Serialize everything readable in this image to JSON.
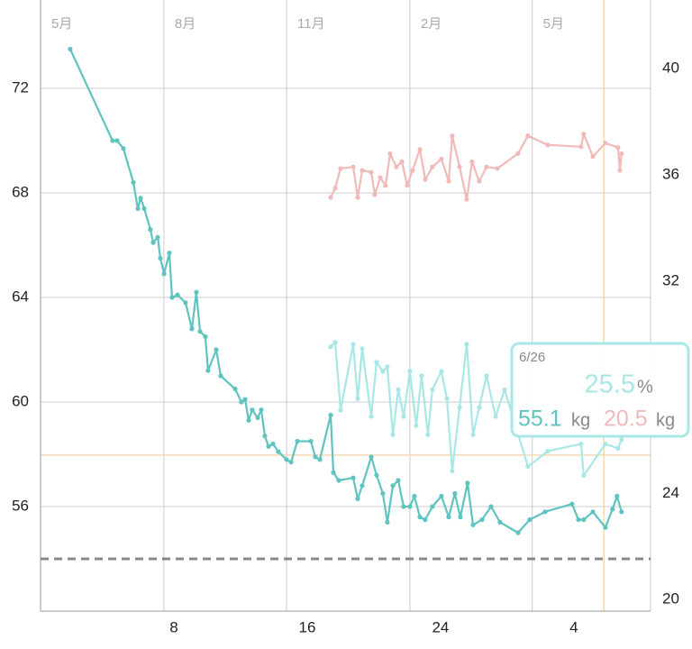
{
  "chart_data": {
    "type": "line",
    "xlim": [
      0,
      36.6
    ],
    "xticks": [
      8,
      16,
      24,
      {
        "value": 32,
        "label": "4"
      }
    ],
    "x2ticks": [
      {
        "value": 0,
        "label": "5月"
      },
      {
        "value": 7.4,
        "label": "8月"
      },
      {
        "value": 14.76,
        "label": "11月"
      },
      {
        "value": 22.16,
        "label": "2月"
      },
      {
        "value": 29.5,
        "label": "5月"
      }
    ],
    "ylim": [
      52,
      75.38
    ],
    "yticks": [
      56,
      60,
      64,
      68,
      72
    ],
    "y2lim": [
      19.56,
      42.59
    ],
    "y2ticks": [
      20,
      24,
      32,
      36,
      40
    ],
    "grid": true,
    "reference_lines": [
      {
        "axis": "y",
        "value": 54,
        "color": "#888888",
        "style": "dashed"
      },
      {
        "axis": "y",
        "value": 57.97,
        "color": "#f5d39e",
        "style": "solid"
      },
      {
        "axis": "x",
        "value": 33.8,
        "color": "#f5d39e",
        "style": "solid"
      }
    ],
    "series": [
      {
        "color": "#f2b9b9",
        "axis": "y2",
        "x": [
          17.41,
          17.68,
          18,
          18.76,
          19.03,
          19.3,
          19.84,
          20.05,
          20.38,
          20.7,
          20.97,
          21.35,
          21.68,
          22,
          22.32,
          22.76,
          23.08,
          23.51,
          24.05,
          24.49,
          24.7,
          25.14,
          25.57,
          25.89,
          26.32,
          26.76,
          27.41,
          28.65,
          29.24,
          30.43,
          32.43,
          32.59,
          33.14,
          33.89,
          34.65,
          34.76,
          34.86
        ],
        "values": [
          35.15,
          35.5,
          36.24,
          36.3,
          35.15,
          36.17,
          36.1,
          35.25,
          35.9,
          35.6,
          36.8,
          36.3,
          36.5,
          35.6,
          36.17,
          36.96,
          35.83,
          36.3,
          36.6,
          35.76,
          37.47,
          36.3,
          35.08,
          36.5,
          35.76,
          36.3,
          36.24,
          36.8,
          37.47,
          37.13,
          37.06,
          37.54,
          36.69,
          37.2,
          37.03,
          36.17,
          36.8
        ]
      },
      {
        "color": "#a9e7e6",
        "axis": "y2",
        "x": [
          17.41,
          17.68,
          18,
          18.76,
          19.03,
          19.3,
          19.84,
          20.16,
          20.54,
          20.81,
          21.14,
          21.46,
          21.78,
          22.16,
          22.54,
          22.86,
          23.24,
          23.51,
          24.05,
          24.38,
          24.7,
          25.14,
          25.57,
          25.95,
          26.32,
          26.76,
          27.3,
          27.84,
          29.24,
          30.43,
          32.43,
          32.59,
          33.89,
          34.65,
          34.86
        ],
        "values": [
          29.52,
          29.69,
          27.13,
          29.62,
          27.57,
          29.45,
          26.89,
          28.94,
          28.6,
          28.77,
          26.21,
          27.91,
          26.89,
          28.6,
          26.55,
          28.43,
          26.21,
          27.91,
          28.6,
          27.57,
          24.84,
          27.23,
          29.62,
          26.21,
          27.23,
          28.43,
          26.89,
          27.91,
          25.01,
          25.59,
          25.86,
          24.67,
          25.86,
          25.69,
          26.03
        ]
      },
      {
        "color": "#5fc3bf",
        "axis": "y",
        "x": [
          1.78,
          4.32,
          4.59,
          4.97,
          5.57,
          5.84,
          6.0,
          6.22,
          6.59,
          6.76,
          7.03,
          7.19,
          7.41,
          7.73,
          7.89,
          8.22,
          8.7,
          9.08,
          9.35,
          9.57,
          9.89,
          10.05,
          10.54,
          10.81,
          11.68,
          12.05,
          12.27,
          12.49,
          12.7,
          13.03,
          13.24,
          13.46,
          13.68,
          13.95,
          14.27,
          14.76,
          15.03,
          15.41,
          16.22,
          16.49,
          16.76,
          17.41,
          17.57,
          17.89,
          18.76,
          19.03,
          19.3,
          19.84,
          20.16,
          20.54,
          20.81,
          21.14,
          21.46,
          21.78,
          22.16,
          22.43,
          22.76,
          23.08,
          23.51,
          24.05,
          24.49,
          24.86,
          25.19,
          25.62,
          25.95,
          26.49,
          27.03,
          27.57,
          28.65,
          29.35,
          30.27,
          31.89,
          32.27,
          32.59,
          33.14,
          33.89,
          34.32,
          34.59,
          34.86
        ],
        "values": [
          73.5,
          70,
          70,
          69.7,
          68.4,
          67.4,
          67.8,
          67.4,
          66.6,
          66.1,
          66.3,
          65.5,
          64.9,
          65.7,
          64,
          64.1,
          63.8,
          62.8,
          64.2,
          62.7,
          62.5,
          61.2,
          62,
          61,
          60.5,
          60,
          60.1,
          59.3,
          59.7,
          59.4,
          59.7,
          58.7,
          58.3,
          58.4,
          58.1,
          57.8,
          57.7,
          58.5,
          58.5,
          57.9,
          57.8,
          59.5,
          57.3,
          57,
          57.1,
          56.3,
          56.8,
          57.9,
          57.2,
          56.5,
          55.4,
          56.8,
          57,
          56,
          56,
          56.4,
          55.6,
          55.5,
          56,
          56.4,
          55.6,
          56.5,
          55.6,
          56.9,
          55.3,
          55.5,
          56,
          55.4,
          55,
          55.5,
          55.8,
          56.1,
          55.5,
          55.5,
          55.8,
          55.2,
          55.9,
          56.4,
          55.8
        ]
      }
    ],
    "tooltip": {
      "date": "6/26",
      "percent": 25.5,
      "percent_unit": "%",
      "weight": 55.1,
      "weight_unit": "kg",
      "other": 20.5,
      "other_unit": "kg"
    }
  }
}
